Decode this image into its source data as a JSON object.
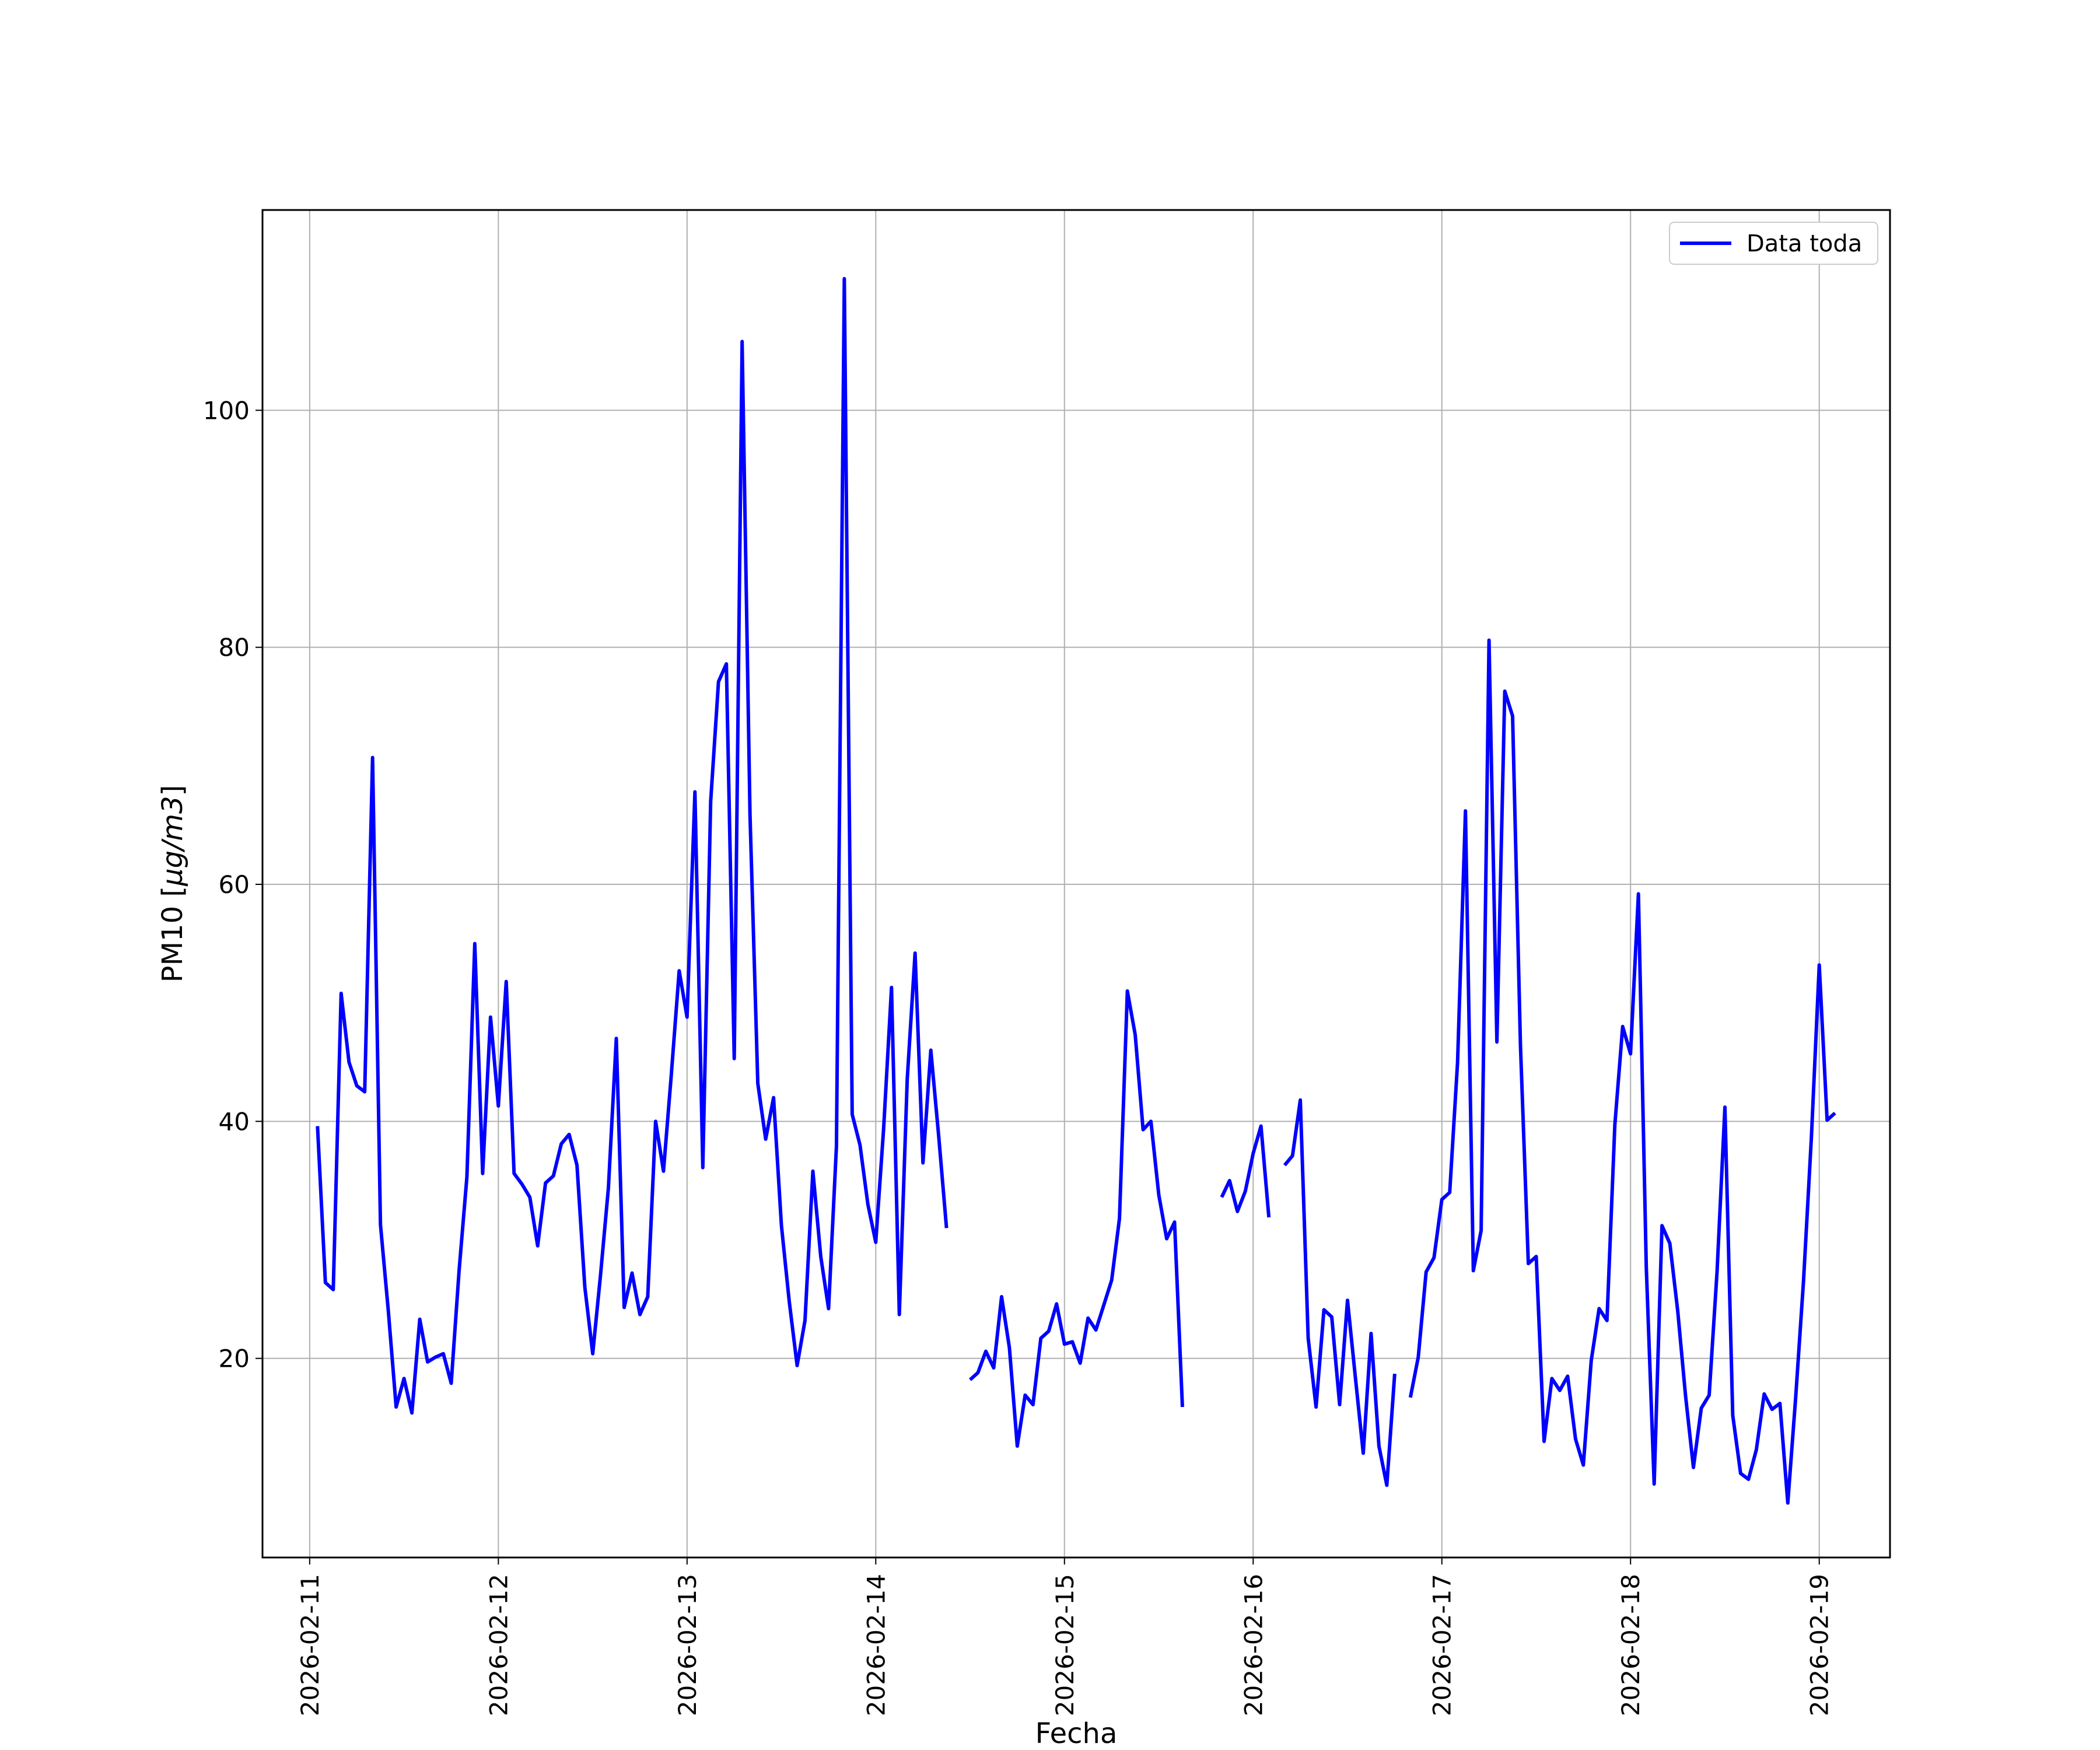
{
  "chart_data": {
    "type": "line",
    "xlabel": "Fecha",
    "ylabel": "PM10 [μg/m3]",
    "ylabel_parts": {
      "prefix": "PM10 [",
      "math": "μg/m3",
      "suffix": "]"
    },
    "xlim": [
      "2026-02-10 18:00",
      "2026-02-19 09:00"
    ],
    "ylim": [
      3.2,
      116.9
    ],
    "x_ticks": [
      "2026-02-11",
      "2026-02-12",
      "2026-02-13",
      "2026-02-14",
      "2026-02-15",
      "2026-02-16",
      "2026-02-17",
      "2026-02-18",
      "2026-02-19"
    ],
    "y_ticks": [
      20,
      40,
      60,
      80,
      100
    ],
    "grid": true,
    "legend_position": "top-right",
    "series": [
      {
        "name": "Data toda",
        "color": "#0000ff",
        "x_start": "2026-02-11 01:00",
        "x_step_hours": 1,
        "values": [
          39.6,
          26.4,
          25.8,
          50.8,
          45.0,
          43.0,
          42.5,
          70.7,
          31.3,
          24.0,
          15.9,
          18.3,
          15.4,
          23.3,
          19.7,
          20.1,
          20.4,
          17.9,
          27.4,
          35.3,
          55.0,
          35.6,
          48.8,
          41.3,
          51.8,
          35.6,
          34.7,
          33.6,
          29.5,
          34.8,
          35.4,
          38.1,
          38.9,
          36.3,
          26.0,
          20.4,
          27.1,
          34.4,
          47.0,
          24.3,
          27.2,
          23.7,
          25.2,
          40.0,
          35.8,
          44.0,
          52.7,
          48.8,
          67.8,
          36.1,
          67.0,
          77.1,
          78.6,
          45.3,
          105.8,
          65.9,
          43.2,
          38.5,
          42.0,
          31.2,
          24.8,
          19.4,
          23.2,
          35.8,
          28.6,
          24.2,
          37.9,
          111.1,
          40.6,
          38.0,
          33.0,
          29.8,
          39.4,
          51.3,
          23.7,
          43.5,
          54.2,
          36.5,
          46.0,
          38.8,
          31.0,
          null,
          null,
          18.2,
          18.8,
          20.6,
          19.2,
          25.2,
          20.9,
          12.6,
          16.9,
          16.1,
          21.7,
          22.3,
          24.6,
          21.2,
          21.4,
          19.6,
          23.4,
          22.4,
          24.5,
          26.6,
          31.8,
          51.0,
          47.3,
          39.3,
          40.0,
          33.8,
          30.1,
          31.5,
          15.9,
          null,
          null,
          null,
          null,
          33.6,
          35.0,
          32.4,
          34.1,
          37.3,
          39.6,
          31.9,
          null,
          36.3,
          37.1,
          41.8,
          21.7,
          15.9,
          24.1,
          23.5,
          16.1,
          24.9,
          18.4,
          12.0,
          22.1,
          12.6,
          9.3,
          18.7,
          null,
          16.7,
          20.1,
          27.3,
          28.5,
          33.4,
          34.0,
          45.0,
          66.2,
          27.4,
          30.8,
          80.6,
          46.7,
          76.3,
          74.2,
          46.4,
          28.0,
          28.6,
          13.0,
          18.3,
          17.3,
          18.5,
          13.2,
          11.0,
          19.8,
          24.2,
          23.2,
          39.7,
          48.0,
          45.7,
          59.2,
          27.7,
          9.4,
          31.2,
          29.7,
          24.0,
          16.8,
          10.8,
          15.8,
          16.9,
          27.3,
          41.2,
          15.2,
          10.3,
          9.8,
          12.3,
          17.0,
          15.7,
          16.2,
          7.8,
          16.7,
          26.5,
          38.6,
          53.2,
          40.1,
          40.7
        ]
      }
    ]
  }
}
